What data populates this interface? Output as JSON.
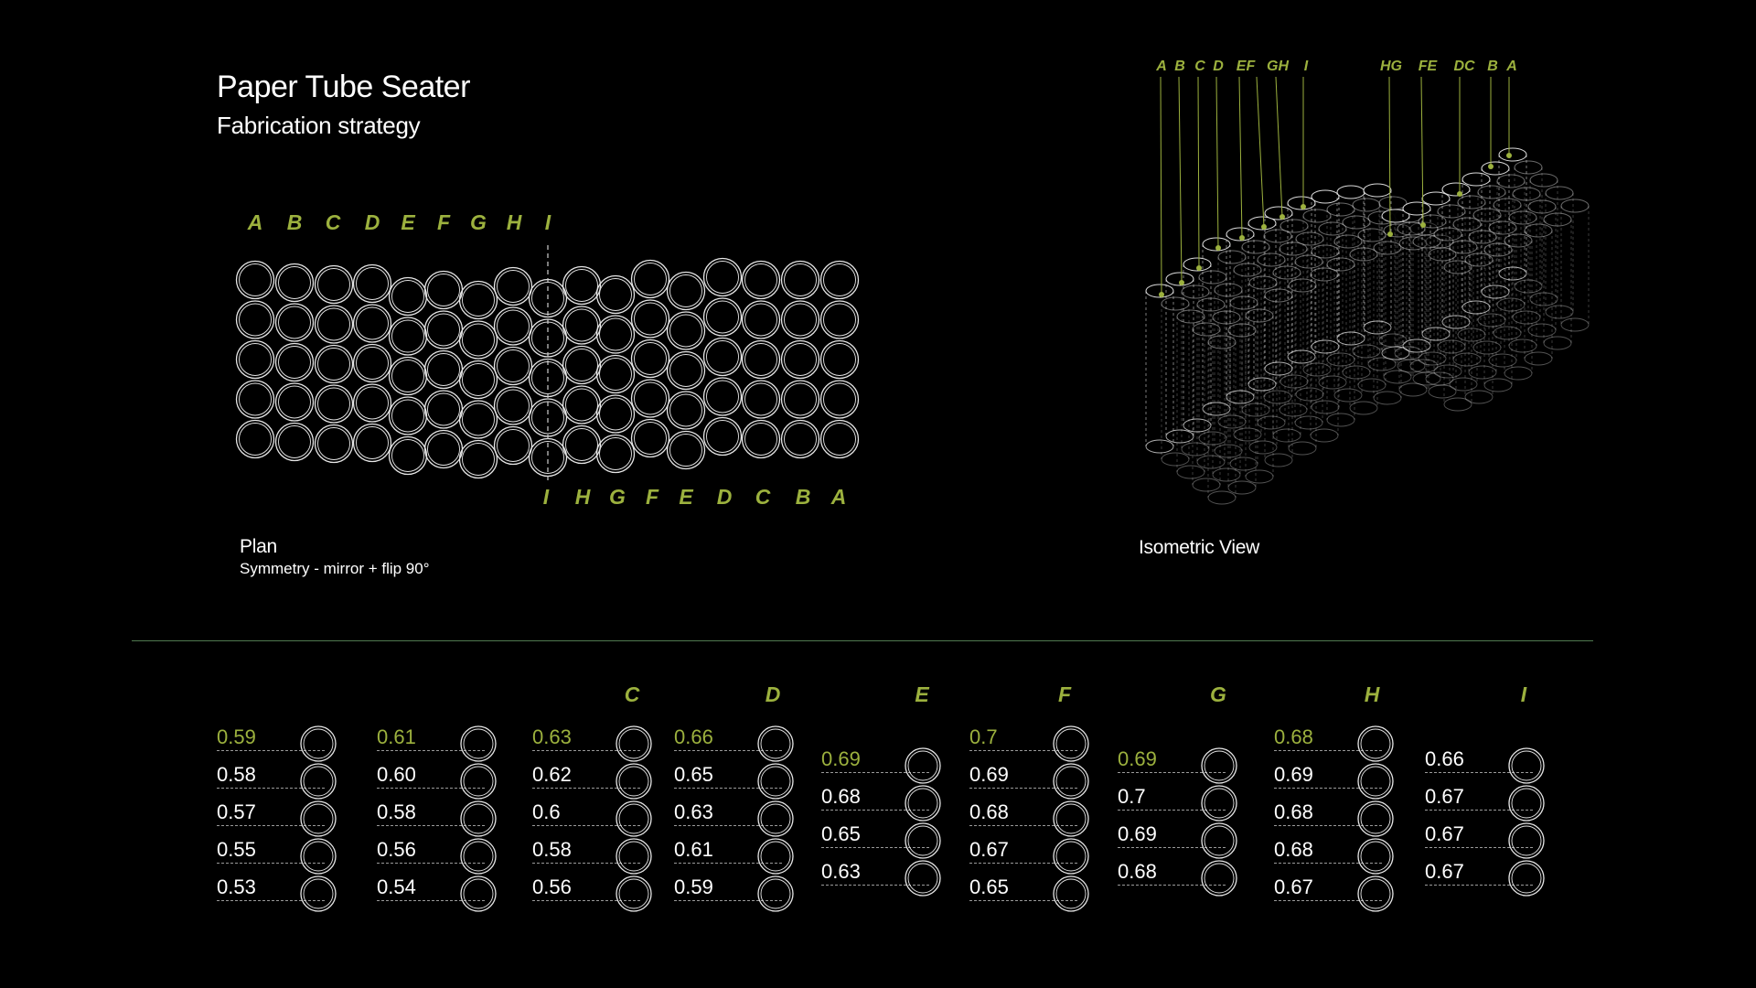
{
  "header": {
    "title": "Paper Tube Seater",
    "subtitle": "Fabrication strategy"
  },
  "plan": {
    "caption": "Plan",
    "caption_sub": "Symmetry - mirror + flip 90°",
    "top_labels": [
      "A",
      "B",
      "C",
      "D",
      "E",
      "F",
      "G",
      "H",
      "I"
    ],
    "bottom_labels": [
      "I",
      "H",
      "G",
      "F",
      "E",
      "D",
      "C",
      "B",
      "A"
    ]
  },
  "isometric": {
    "caption": "Isometric View",
    "labels": [
      "A",
      "B",
      "C",
      "D",
      "EF",
      "GH",
      "I",
      "HG",
      "FE",
      "DC",
      "B",
      "A"
    ]
  },
  "table": {
    "columns": [
      {
        "label": "",
        "values": [
          "0.59",
          "0.58",
          "0.57",
          "0.55",
          "0.53"
        ]
      },
      {
        "label": "",
        "values": [
          "0.61",
          "0.60",
          "0.58",
          "0.56",
          "0.54"
        ]
      },
      {
        "label": "C",
        "values": [
          "0.63",
          "0.62",
          "0.6",
          "0.58",
          "0.56"
        ]
      },
      {
        "label": "D",
        "values": [
          "0.66",
          "0.65",
          "0.63",
          "0.61",
          "0.59"
        ]
      },
      {
        "label": "E",
        "values": [
          "0.69",
          "0.68",
          "0.65",
          "0.63"
        ]
      },
      {
        "label": "F",
        "values": [
          "0.7",
          "0.69",
          "0.68",
          "0.67",
          "0.65"
        ]
      },
      {
        "label": "G",
        "values": [
          "0.69",
          "0.7",
          "0.69",
          "0.68"
        ]
      },
      {
        "label": "H",
        "values": [
          "0.68",
          "0.69",
          "0.68",
          "0.68",
          "0.67"
        ]
      },
      {
        "label": "I",
        "values": [
          "0.66",
          "0.67",
          "0.67",
          "0.67"
        ]
      }
    ]
  },
  "colors": {
    "background": "#000000",
    "accent": "#9cb13e",
    "divider": "#4f7a4f",
    "stroke": "#e6e6e6"
  }
}
